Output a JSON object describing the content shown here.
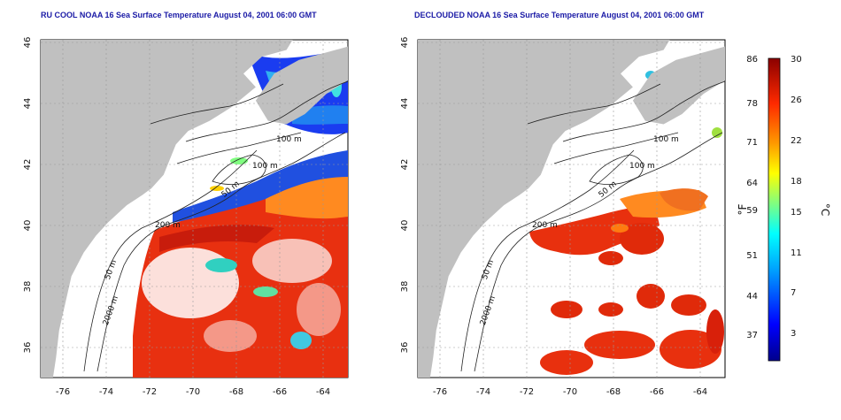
{
  "maps": [
    {
      "title": "RU COOL NOAA 16 Sea Surface Temperature August 04, 2001 06:00 GMT",
      "x_ticks": [
        "-76",
        "-74",
        "-72",
        "-70",
        "-68",
        "-66",
        "-64"
      ],
      "y_ticks": [
        "46",
        "44",
        "42",
        "40",
        "38",
        "36"
      ],
      "contour_labels": [
        "100 m",
        "100 m",
        "50 m",
        "200 m",
        "50 m",
        "2000 m"
      ]
    },
    {
      "title": "DECLOUDED NOAA 16 Sea Surface Temperature August 04, 2001 06:00 GMT",
      "x_ticks": [
        "-76",
        "-74",
        "-72",
        "-70",
        "-68",
        "-66",
        "-64"
      ],
      "y_ticks": [
        "46",
        "44",
        "42",
        "40",
        "38",
        "36"
      ],
      "contour_labels": [
        "100 m",
        "100 m",
        "50 m",
        "200 m",
        "50 m",
        "2000 m"
      ]
    }
  ],
  "colorbar": {
    "f_label": "°F",
    "c_label": "°C",
    "f_ticks": [
      "86",
      "78",
      "71",
      "64",
      "59",
      "51",
      "44",
      "37"
    ],
    "c_ticks": [
      "30",
      "26",
      "22",
      "18",
      "15",
      "11",
      "7",
      "3"
    ],
    "range_c": [
      0,
      30
    ],
    "colors": [
      "#00008b",
      "#0000ff",
      "#00a0ff",
      "#00ffff",
      "#80ff80",
      "#ffff00",
      "#ff9900",
      "#ff2a00",
      "#8b0000"
    ]
  }
}
